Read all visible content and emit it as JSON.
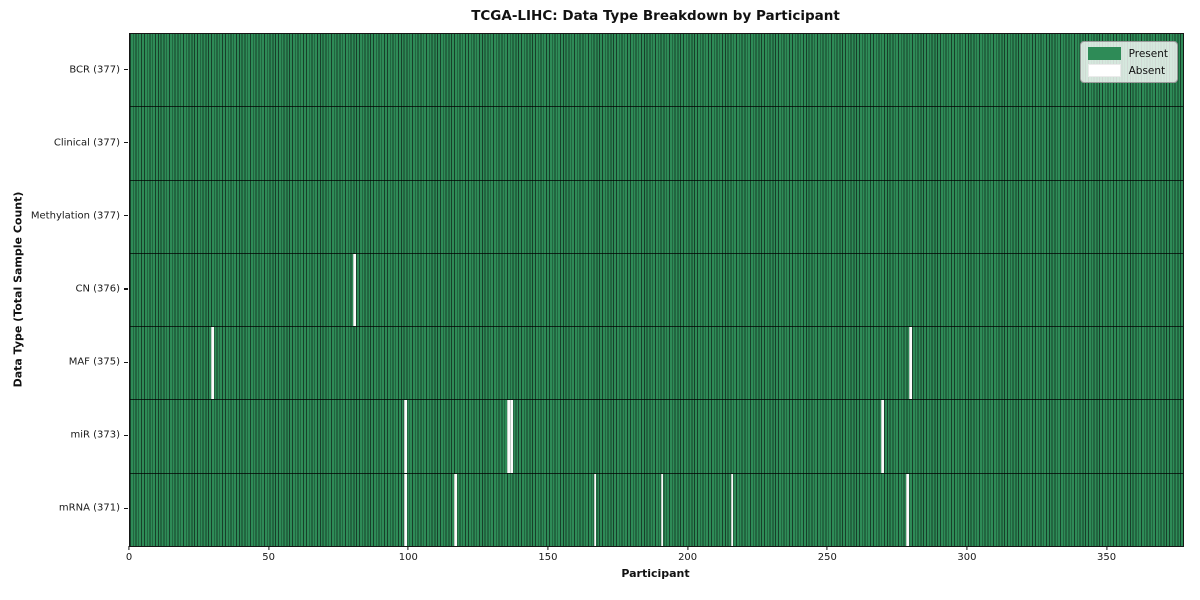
{
  "chart_data": {
    "type": "heatmap",
    "title": "TCGA-LIHC: Data Type Breakdown by Participant",
    "xlabel": "Participant",
    "ylabel": "Data Type (Total Sample Count)",
    "x_ticks": [
      0,
      50,
      100,
      150,
      200,
      250,
      300,
      350
    ],
    "x_range": [
      0,
      377
    ],
    "n_participants": 377,
    "grid": "column-gridlines-on",
    "colors": {
      "present": "#2e8b57",
      "absent": "#fbfbfb",
      "gridline": "#17402a"
    },
    "legend": {
      "position": "upper-right",
      "entries": [
        {
          "label": "Present",
          "color": "#2e8b57"
        },
        {
          "label": "Absent",
          "color": "#ffffff"
        }
      ]
    },
    "rows": [
      {
        "label": "BCR (377)",
        "data_type": "BCR",
        "present_count": 377,
        "absent_indices": []
      },
      {
        "label": "Clinical (377)",
        "data_type": "Clinical",
        "present_count": 377,
        "absent_indices": []
      },
      {
        "label": "Methylation (377)",
        "data_type": "Methylation",
        "present_count": 377,
        "absent_indices": []
      },
      {
        "label": "CN (376)",
        "data_type": "CN",
        "present_count": 376,
        "absent_indices": [
          80
        ]
      },
      {
        "label": "MAF (375)",
        "data_type": "MAF",
        "present_count": 375,
        "absent_indices": [
          29,
          279
        ]
      },
      {
        "label": "miR (373)",
        "data_type": "miR",
        "present_count": 373,
        "absent_indices": [
          98,
          135,
          136,
          269
        ]
      },
      {
        "label": "mRNA (371)",
        "data_type": "mRNA",
        "present_count": 371,
        "absent_indices": [
          98,
          116,
          166,
          190,
          215,
          278
        ]
      }
    ]
  }
}
